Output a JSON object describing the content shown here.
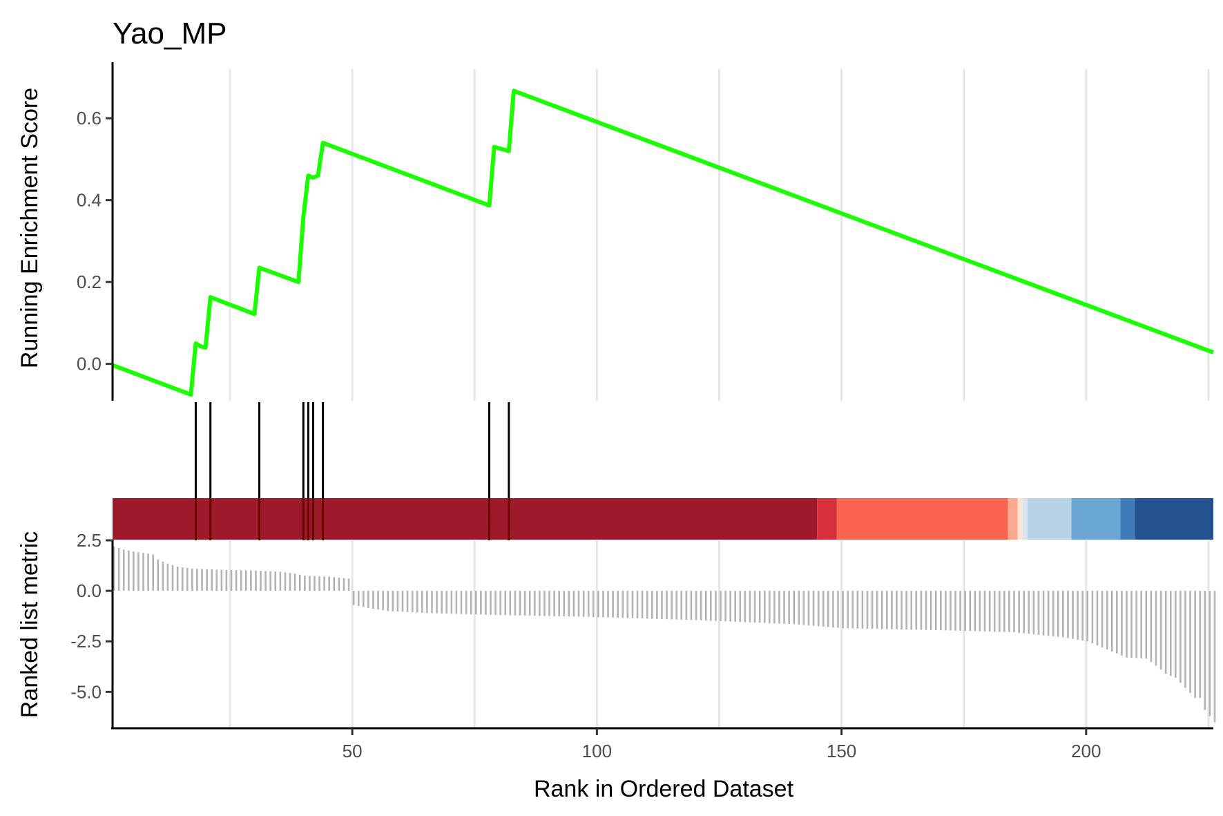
{
  "chart_data": {
    "type": "line",
    "title": "Yao_MP",
    "xlabel": "Rank in Ordered Dataset",
    "x_ticks": [
      "50",
      "100",
      "150",
      "200"
    ],
    "x_tick_values": [
      50,
      100,
      150,
      200
    ],
    "xlim": [
      1,
      226
    ],
    "grid": "vertical",
    "colors": {
      "es_line": "#1aff00",
      "hit_bar": "#000000",
      "ranked_bar": "#b3b3b3",
      "grid": "#e6e6e6"
    },
    "running_es": {
      "ylabel": "Running Enrichment Score",
      "ylim": [
        -0.09,
        0.72
      ],
      "y_ticks": [
        "0.0",
        "0.2",
        "0.4",
        "0.6"
      ],
      "y_tick_values": [
        0,
        0.2,
        0.4,
        0.6
      ],
      "x": [
        1,
        17,
        18,
        19,
        20,
        21,
        30,
        31,
        39,
        40,
        41,
        42,
        43,
        44,
        78,
        79,
        82,
        83,
        226
      ],
      "y": [
        -0.003,
        -0.075,
        0.05,
        0.043,
        0.04,
        0.163,
        0.122,
        0.235,
        0.2,
        0.36,
        0.46,
        0.455,
        0.46,
        0.54,
        0.387,
        0.53,
        0.52,
        0.667,
        0.028
      ]
    },
    "hits": [
      18,
      21,
      31,
      40,
      41,
      42,
      44,
      78,
      82
    ],
    "color_bar": [
      {
        "from": 1,
        "to": 145,
        "color": "#9e1a2a"
      },
      {
        "from": 145,
        "to": 149,
        "color": "#d7303a"
      },
      {
        "from": 149,
        "to": 184,
        "color": "#f96551"
      },
      {
        "from": 184,
        "to": 186,
        "color": "#fca98d"
      },
      {
        "from": 186,
        "to": 187,
        "color": "#fee4d7"
      },
      {
        "from": 187,
        "to": 188,
        "color": "#d6e5f0"
      },
      {
        "from": 188,
        "to": 197,
        "color": "#b8d2e6"
      },
      {
        "from": 197,
        "to": 207,
        "color": "#69a7d2"
      },
      {
        "from": 207,
        "to": 210,
        "color": "#3e7bb8"
      },
      {
        "from": 210,
        "to": 226,
        "color": "#23528f"
      }
    ],
    "ranked_metric": {
      "ylabel": "Ranked list metric",
      "ylim": [
        -6.8,
        2.5
      ],
      "y_ticks": [
        "2.5",
        "0.0",
        "-2.5",
        "-5.0"
      ],
      "y_tick_values": [
        2.5,
        0,
        -2.5,
        -5
      ],
      "breakpoints": [
        [
          1,
          2.2
        ],
        [
          3,
          2.05
        ],
        [
          5,
          1.95
        ],
        [
          9,
          1.8
        ],
        [
          10,
          1.55
        ],
        [
          12,
          1.35
        ],
        [
          14,
          1.2
        ],
        [
          17,
          1.1
        ],
        [
          22,
          1.05
        ],
        [
          30,
          1.0
        ],
        [
          35,
          0.95
        ],
        [
          38,
          0.85
        ],
        [
          40,
          0.75
        ],
        [
          45,
          0.7
        ],
        [
          49,
          0.6
        ],
        [
          50,
          -0.7
        ],
        [
          53,
          -0.85
        ],
        [
          57,
          -1.0
        ],
        [
          65,
          -1.1
        ],
        [
          80,
          -1.2
        ],
        [
          100,
          -1.3
        ],
        [
          120,
          -1.45
        ],
        [
          140,
          -1.65
        ],
        [
          150,
          -1.85
        ],
        [
          170,
          -1.95
        ],
        [
          185,
          -2.05
        ],
        [
          195,
          -2.3
        ],
        [
          200,
          -2.5
        ],
        [
          205,
          -3.0
        ],
        [
          208,
          -3.3
        ],
        [
          212,
          -3.35
        ],
        [
          214,
          -3.7
        ],
        [
          216,
          -4.1
        ],
        [
          218,
          -4.3
        ],
        [
          220,
          -4.8
        ],
        [
          222,
          -5.3
        ],
        [
          224,
          -5.9
        ],
        [
          226,
          -6.5
        ]
      ]
    }
  }
}
